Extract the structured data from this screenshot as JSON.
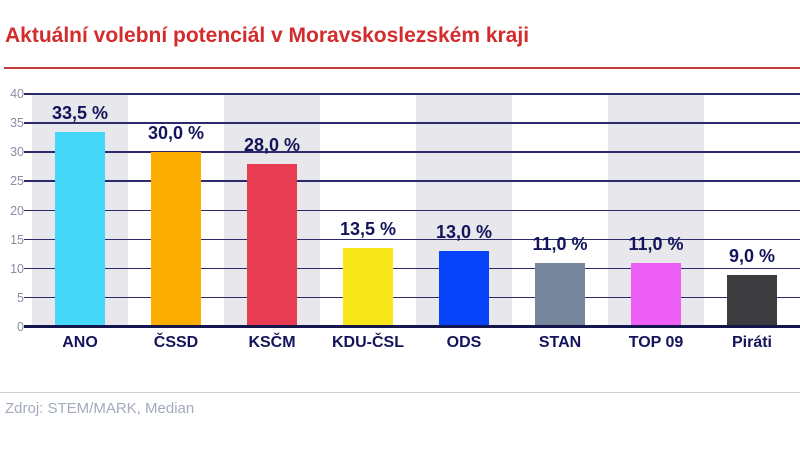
{
  "header": {
    "title": "Aktuální volební potenciál v Moravskoslezském kraji"
  },
  "footer": {
    "source": "Zdroj: STEM/MARK, Median"
  },
  "theme": {
    "title_color": "#d32c2c",
    "rule_color": "#c23b3b",
    "gridline_color": "#2b2b6b",
    "axis_color": "#16164e",
    "label_color": "#14145a",
    "tick_label_color": "#8c8ca4",
    "source_color": "#a3abbc"
  },
  "chart_data": {
    "type": "bar",
    "title": "Aktuální volební potenciál v Moravskoslezském kraji",
    "categories": [
      "ANO",
      "ČSSD",
      "KSČM",
      "KDU-ČSL",
      "ODS",
      "STAN",
      "TOP 09",
      "Piráti"
    ],
    "values": [
      33.5,
      30.0,
      28.0,
      13.5,
      13.0,
      11.0,
      11.0,
      9.0
    ],
    "value_labels": [
      "33,5 %",
      "30,0 %",
      "28,0 %",
      "13,5 %",
      "13,0 %",
      "11,0 %",
      "11,0 %",
      "9,0 %"
    ],
    "bar_colors": [
      "#45d7f7",
      "#fbad00",
      "#e73c51",
      "#f9e71b",
      "#0743f9",
      "#76879b",
      "#ee60f5",
      "#3c3c3e"
    ],
    "column_stripe_colors": [
      "#e7e7ec",
      "#ffffff"
    ],
    "xlabel": "",
    "ylabel": "",
    "ylim": [
      0,
      40
    ],
    "yticks": [
      0,
      5,
      10,
      15,
      20,
      25,
      30,
      35,
      40
    ],
    "grid": true,
    "legend": "none",
    "source": "Zdroj: STEM/MARK, Median"
  }
}
